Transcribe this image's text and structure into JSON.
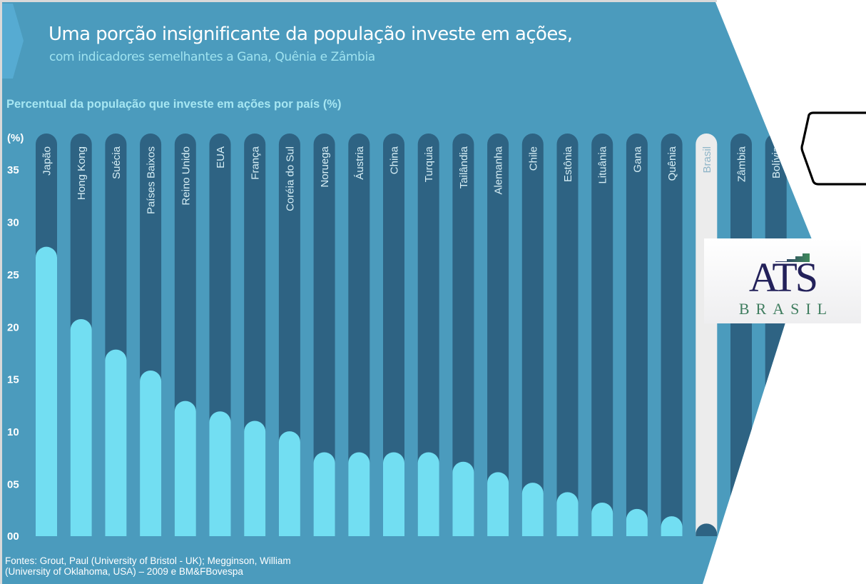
{
  "header": {
    "title": "Uma porção insignificante da população investe em ações,",
    "subtitle": "com indicadores semelhantes a Gana, Quênia e Zâmbia"
  },
  "colors": {
    "panel": "#4b9bbd",
    "panel_arrow": "#56abd2",
    "track": "#2e6383",
    "bar": "#72def2",
    "highlight_track": "#ececec",
    "highlight_bar": "#2e6383",
    "frame": "#d9d9d9"
  },
  "chart_data": {
    "type": "bar",
    "title": "Percentual da população que investe em ações por país (%)",
    "xlabel": "",
    "ylabel": "(%)",
    "ylim": [
      0,
      35
    ],
    "yticks": [
      "00",
      "05",
      "10",
      "15",
      "20",
      "25",
      "30",
      "35"
    ],
    "ytick_values": [
      0,
      5,
      10,
      15,
      20,
      25,
      30,
      35
    ],
    "grid": false,
    "highlight": "Brasil",
    "categories": [
      "Japão",
      "Hong Kong",
      "Suécia",
      "Países Baixos",
      "Reino Unido",
      "EUA",
      "França",
      "Coréia do Sul",
      "Noruega",
      "Áustria",
      "China",
      "Turquia",
      "Tailândia",
      "Alemanha",
      "Chile",
      "Estônia",
      "Lituânia",
      "Gana",
      "Quênia",
      "Brasil",
      "Zâmbia",
      "Bolívia"
    ],
    "values": [
      27.6,
      20.7,
      17.8,
      15.8,
      12.9,
      11.9,
      11.0,
      10.0,
      8.0,
      8.0,
      8.0,
      8.0,
      7.1,
      6.1,
      5.1,
      4.2,
      3.2,
      2.6,
      1.9,
      1.2,
      null,
      null
    ]
  },
  "source": {
    "line1": "Fontes: Grout, Paul (University of Bristol - UK); Megginson, William",
    "line2": "(University of Oklahoma, USA) – 2009 e BM&FBovespa"
  },
  "logo": {
    "name": "ATS",
    "tagline": "BRASIL"
  }
}
